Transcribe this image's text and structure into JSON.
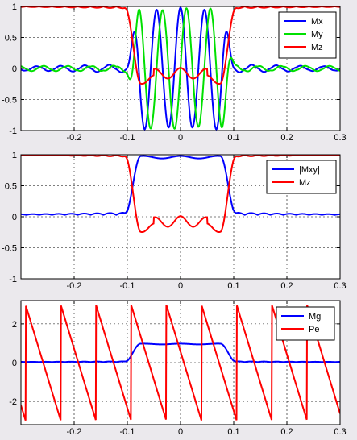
{
  "chart_data": [
    {
      "type": "line",
      "xlim": [
        -0.3,
        0.3
      ],
      "ylim": [
        -1,
        1
      ],
      "xticks": [
        "-0.2",
        "-0.1",
        "0",
        "0.1",
        "0.2",
        "0.3"
      ],
      "yticks": [
        "1",
        "0.5",
        "0",
        "-0.5",
        "-1"
      ],
      "grid": true,
      "legend_position": "top-right",
      "series": [
        {
          "name": "Mx",
          "color": "#0000ff"
        },
        {
          "name": "My",
          "color": "#00e000"
        },
        {
          "name": "Mz",
          "color": "#ff0000"
        }
      ]
    },
    {
      "type": "line",
      "xlim": [
        -0.3,
        0.3
      ],
      "ylim": [
        -1,
        1
      ],
      "xticks": [
        "-0.2",
        "-0.1",
        "0",
        "0.1",
        "0.2",
        "0.3"
      ],
      "yticks": [
        "1",
        "0.5",
        "0",
        "-0.5",
        "-1"
      ],
      "grid": true,
      "legend_position": "top-right",
      "series": [
        {
          "name": "|Mxy|",
          "color": "#0000ff"
        },
        {
          "name": "Mz",
          "color": "#ff0000"
        }
      ]
    },
    {
      "type": "line",
      "xlim": [
        -0.3,
        0.3
      ],
      "ylim": [
        -3.2,
        3.2
      ],
      "xticks": [
        "-0.2",
        "-0.1",
        "0",
        "0.1",
        "0.2",
        "0.3"
      ],
      "yticks": [
        "2",
        "0",
        "-2"
      ],
      "grid": true,
      "legend_position": "top-right",
      "series": [
        {
          "name": "Mg",
          "color": "#0000ff"
        },
        {
          "name": "Pe",
          "color": "#ff0000"
        }
      ]
    }
  ]
}
